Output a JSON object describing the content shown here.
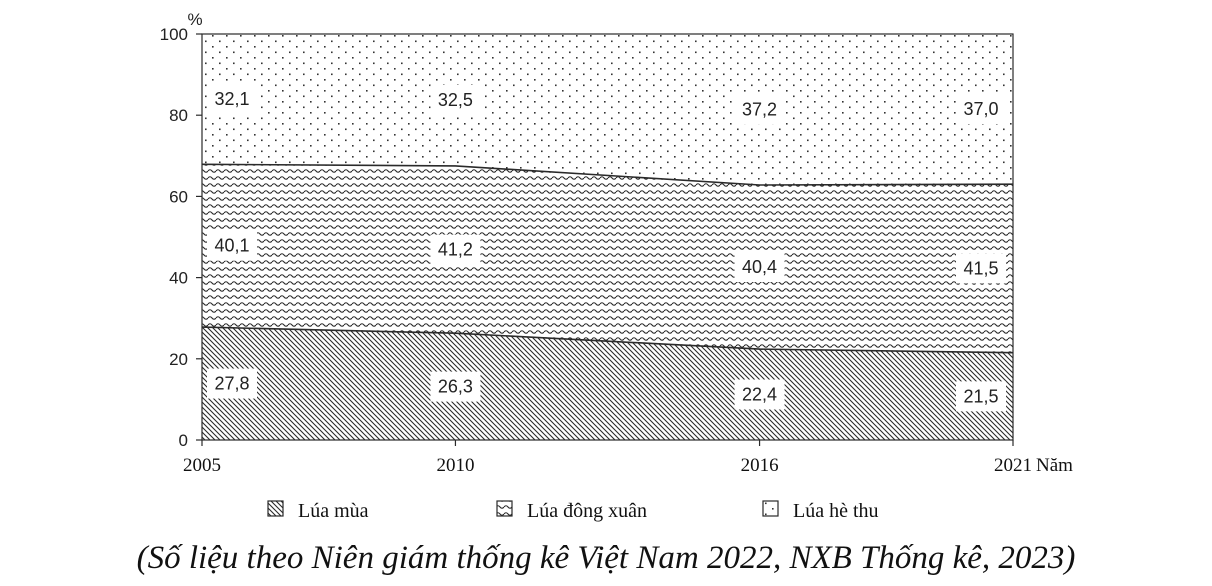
{
  "chart_data": {
    "type": "area",
    "stacked": true,
    "x": [
      "2005",
      "2010",
      "2016",
      "2021"
    ],
    "x_values": [
      2005,
      2010,
      2016,
      2021
    ],
    "series": [
      {
        "name": "Lúa mùa",
        "values": [
          27.8,
          26.3,
          22.4,
          21.5
        ],
        "pattern": "diagonal-hatch"
      },
      {
        "name": "Lúa đông xuân",
        "values": [
          40.1,
          41.2,
          40.4,
          41.5
        ],
        "pattern": "wave"
      },
      {
        "name": "Lúa hè thu",
        "values": [
          32.1,
          32.5,
          37.2,
          37.0
        ],
        "pattern": "dots"
      }
    ],
    "data_labels": [
      [
        "27,8",
        "26,3",
        "22,4",
        "21,5"
      ],
      [
        "40,1",
        "41,2",
        "40,4",
        "41,5"
      ],
      [
        "32,1",
        "32,5",
        "37,2",
        "37,0"
      ]
    ],
    "ylim": [
      0,
      100
    ],
    "yticks": [
      "0",
      "20",
      "40",
      "60",
      "80",
      "100"
    ],
    "ylabel": "%",
    "xlabel": "Năm",
    "grid": false,
    "legend_position": "bottom"
  },
  "source": "(Số liệu theo Niên giám thống kê Việt Nam 2022, NXB Thống kê, 2023)",
  "colors": {
    "ink": "#2a2a2a",
    "background": "#ffffff"
  }
}
